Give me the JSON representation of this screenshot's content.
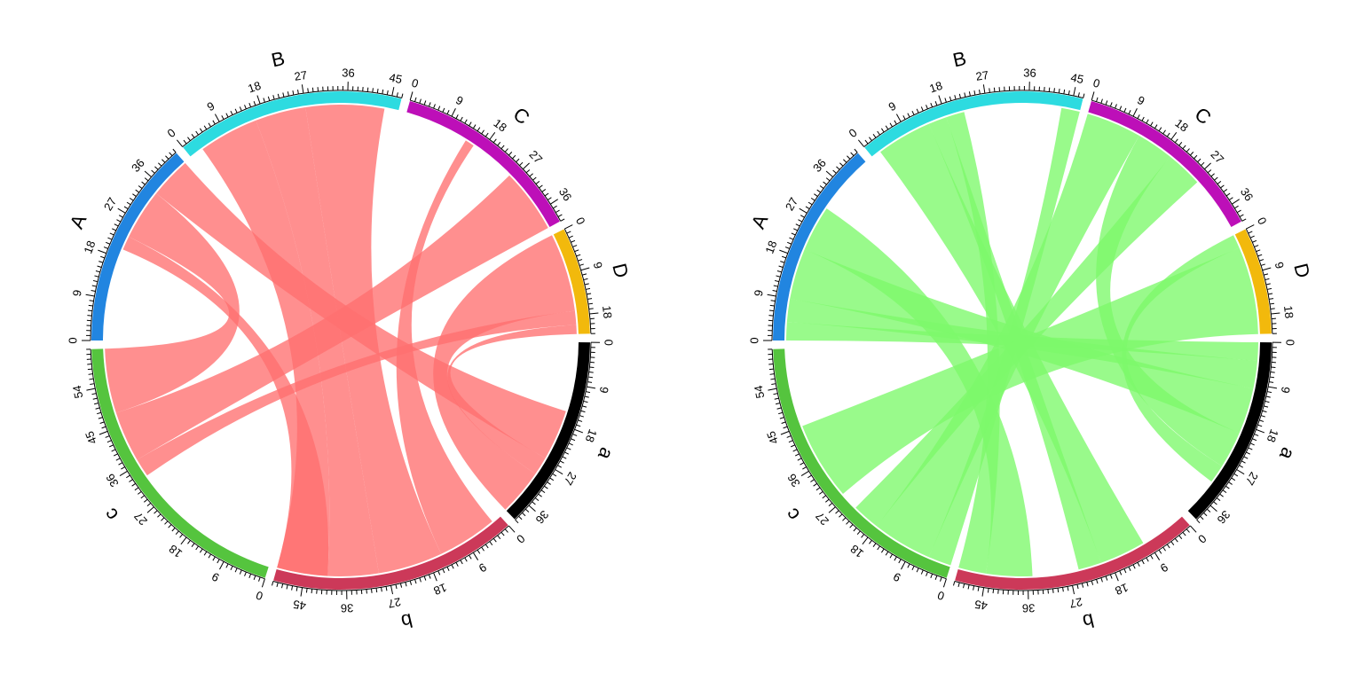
{
  "sectors": [
    {
      "name": "A",
      "size": 43,
      "color": "#2185e0"
    },
    {
      "name": "B",
      "size": 47,
      "color": "#2ddbe0"
    },
    {
      "name": "C",
      "size": 40,
      "color": "#bd0fb8"
    },
    {
      "name": "D",
      "size": 22,
      "color": "#f2b90c"
    },
    {
      "name": "a",
      "size": 40,
      "color": "#000000"
    },
    {
      "name": "b",
      "size": 51,
      "color": "#cc3959"
    },
    {
      "name": "c",
      "size": 62,
      "color": "#55c43e"
    }
  ],
  "chart_data": [
    {
      "type": "chord",
      "link_color": "#ff6f6f",
      "links": [
        {
          "from": "A",
          "from_range": [
            34,
            43
          ],
          "to": "a",
          "to_range": [
            15,
            26
          ]
        },
        {
          "from": "A",
          "from_range": [
            23,
            34
          ],
          "to": "c",
          "to_range": [
            48,
            62
          ]
        },
        {
          "from": "A",
          "from_range": [
            20,
            23
          ],
          "to": "b",
          "to_range": [
            40,
            51
          ]
        },
        {
          "from": "B",
          "from_range": [
            3,
            16
          ],
          "to": "b",
          "to_range": [
            40,
            51
          ]
        },
        {
          "from": "B",
          "from_range": [
            16,
            27
          ],
          "to": "b",
          "to_range": [
            29,
            40
          ]
        },
        {
          "from": "B",
          "from_range": [
            27,
            44
          ],
          "to": "b",
          "to_range": [
            15,
            29
          ]
        },
        {
          "from": "C",
          "from_range": [
            26,
            40
          ],
          "to": "c",
          "to_range": [
            37,
            48
          ]
        },
        {
          "from": "C",
          "from_range": [
            14,
            16
          ],
          "to": "b",
          "to_range": [
            2,
            15
          ]
        },
        {
          "from": "D",
          "from_range": [
            0,
            17
          ],
          "to": "a",
          "to_range": [
            30,
            40
          ]
        },
        {
          "from": "D",
          "from_range": [
            17,
            20
          ],
          "to": "c",
          "to_range": [
            33,
            37
          ]
        },
        {
          "from": "D",
          "from_range": [
            20,
            22
          ],
          "to": "a",
          "to_range": [
            26,
            30
          ]
        }
      ]
    },
    {
      "type": "chord",
      "link_color": "#7cf86a",
      "links": [
        {
          "from": "A",
          "from_range": [
            0,
            4
          ],
          "to": "a",
          "to_range": [
            0,
            4
          ]
        },
        {
          "from": "A",
          "from_range": [
            4,
            9
          ],
          "to": "a",
          "to_range": [
            4,
            10
          ]
        },
        {
          "from": "A",
          "from_range": [
            9,
            20
          ],
          "to": "a",
          "to_range": [
            10,
            20
          ]
        },
        {
          "from": "A",
          "from_range": [
            20,
            30
          ],
          "to": "b",
          "to_range": [
            35,
            45
          ]
        },
        {
          "from": "B",
          "from_range": [
            2,
            14
          ],
          "to": "b",
          "to_range": [
            10,
            20
          ]
        },
        {
          "from": "B",
          "from_range": [
            14,
            18
          ],
          "to": "b",
          "to_range": [
            20,
            25
          ]
        },
        {
          "from": "B",
          "from_range": [
            18,
            22
          ],
          "to": "b",
          "to_range": [
            45,
            51
          ]
        },
        {
          "from": "B",
          "from_range": [
            43,
            47
          ],
          "to": "c",
          "to_range": [
            0,
            5
          ]
        },
        {
          "from": "C",
          "from_range": [
            0,
            12
          ],
          "to": "c",
          "to_range": [
            5,
            18
          ]
        },
        {
          "from": "C",
          "from_range": [
            12,
            20
          ],
          "to": "a",
          "to_range": [
            20,
            28
          ]
        },
        {
          "from": "C",
          "from_range": [
            20,
            28
          ],
          "to": "c",
          "to_range": [
            18,
            24
          ]
        },
        {
          "from": "D",
          "from_range": [
            3,
            22
          ],
          "to": "c",
          "to_range": [
            28,
            45
          ]
        },
        {
          "from": "D",
          "from_range": [
            0,
            3
          ],
          "to": "a",
          "to_range": [
            28,
            32
          ]
        }
      ]
    }
  ]
}
